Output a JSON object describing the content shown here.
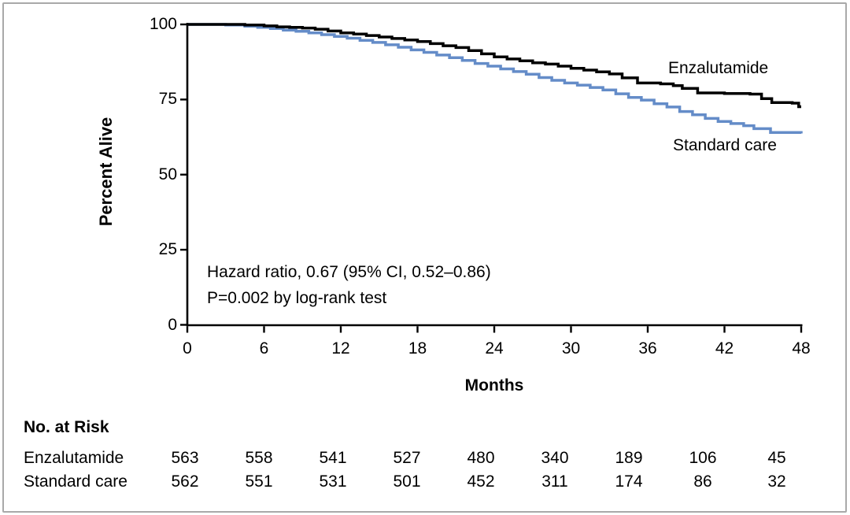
{
  "figure": {
    "background": "#ffffff",
    "border_color": "#a9a9a9",
    "text_color": "#000000"
  },
  "chart_data": {
    "type": "line",
    "subtype": "kaplan-meier-step",
    "title": "",
    "xlabel": "Months",
    "ylabel": "Percent Alive",
    "xlim": [
      0,
      48
    ],
    "ylim": [
      0,
      100
    ],
    "x_ticks": [
      0,
      6,
      12,
      18,
      24,
      30,
      36,
      42,
      48
    ],
    "y_ticks": [
      100,
      75,
      50,
      25,
      0
    ],
    "grid": "off",
    "legend_position": "inline-right-labels",
    "annotation": [
      "Hazard ratio, 0.67 (95% CI, 0.52–0.86)",
      "P=0.002 by log-rank test"
    ],
    "series": [
      {
        "name": "Standard care",
        "color": "#648cc8",
        "points": [
          [
            0,
            100
          ],
          [
            3,
            99.8
          ],
          [
            4.5,
            99.4
          ],
          [
            5.5,
            99.0
          ],
          [
            6.5,
            98.6
          ],
          [
            7.5,
            98.1
          ],
          [
            8.5,
            97.7
          ],
          [
            9.5,
            97.2
          ],
          [
            10.5,
            96.6
          ],
          [
            11.5,
            96.0
          ],
          [
            12.5,
            95.4
          ],
          [
            13.5,
            94.7
          ],
          [
            14.5,
            94.0
          ],
          [
            15.5,
            93.2
          ],
          [
            16.5,
            92.4
          ],
          [
            17.5,
            91.5
          ],
          [
            18.5,
            90.7
          ],
          [
            19.5,
            89.8
          ],
          [
            20.5,
            88.9
          ],
          [
            21.5,
            88.0
          ],
          [
            22.5,
            87.0
          ],
          [
            23.5,
            86.1
          ],
          [
            24.5,
            85.2
          ],
          [
            25.5,
            84.3
          ],
          [
            26.5,
            83.4
          ],
          [
            27.5,
            82.3
          ],
          [
            28.5,
            81.4
          ],
          [
            29.5,
            80.5
          ],
          [
            30.5,
            79.8
          ],
          [
            31.5,
            79.0
          ],
          [
            32.5,
            78.2
          ],
          [
            33.5,
            76.9
          ],
          [
            34.5,
            75.7
          ],
          [
            35.5,
            74.8
          ],
          [
            36.5,
            73.6
          ],
          [
            37.5,
            72.5
          ],
          [
            38.5,
            71.0
          ],
          [
            39.5,
            69.9
          ],
          [
            40.5,
            68.7
          ],
          [
            41.5,
            67.7
          ],
          [
            42.5,
            67.0
          ],
          [
            43.5,
            66.3
          ],
          [
            44.3,
            65.3
          ],
          [
            45.6,
            64.0
          ],
          [
            48,
            63.7
          ]
        ]
      },
      {
        "name": "Enzalutamide",
        "color": "#000000",
        "points": [
          [
            0,
            100
          ],
          [
            3,
            100
          ],
          [
            4.5,
            99.8
          ],
          [
            6,
            99.5
          ],
          [
            7,
            99.2
          ],
          [
            8,
            99.0
          ],
          [
            9,
            98.8
          ],
          [
            10,
            98.4
          ],
          [
            11,
            97.8
          ],
          [
            12,
            97.2
          ],
          [
            13,
            96.8
          ],
          [
            14,
            96.3
          ],
          [
            15,
            95.8
          ],
          [
            16,
            95.3
          ],
          [
            17,
            94.8
          ],
          [
            18,
            94.3
          ],
          [
            19,
            93.6
          ],
          [
            20,
            92.9
          ],
          [
            21,
            92.3
          ],
          [
            22,
            91.3
          ],
          [
            23,
            90.2
          ],
          [
            24,
            89.2
          ],
          [
            25,
            88.5
          ],
          [
            26,
            87.9
          ],
          [
            27,
            87.2
          ],
          [
            28,
            86.8
          ],
          [
            29,
            86.1
          ],
          [
            30,
            85.4
          ],
          [
            31,
            84.8
          ],
          [
            32,
            84.2
          ],
          [
            33,
            83.5
          ],
          [
            34,
            82.2
          ],
          [
            35.2,
            80.5
          ],
          [
            37,
            80.2
          ],
          [
            38,
            79.6
          ],
          [
            38.7,
            78.7
          ],
          [
            39.9,
            77.2
          ],
          [
            42,
            77.0
          ],
          [
            44,
            76.8
          ],
          [
            44.9,
            75.3
          ],
          [
            45.7,
            74.0
          ],
          [
            47.3,
            73.8
          ],
          [
            47.8,
            72.6
          ],
          [
            48,
            72.6
          ]
        ]
      }
    ]
  },
  "risk_table": {
    "title": "No. at Risk",
    "rows": [
      {
        "label": "Enzalutamide",
        "values": [
          563,
          558,
          541,
          527,
          480,
          340,
          189,
          106,
          45
        ]
      },
      {
        "label": "Standard care",
        "values": [
          562,
          551,
          531,
          501,
          452,
          311,
          174,
          86,
          32
        ]
      }
    ]
  }
}
